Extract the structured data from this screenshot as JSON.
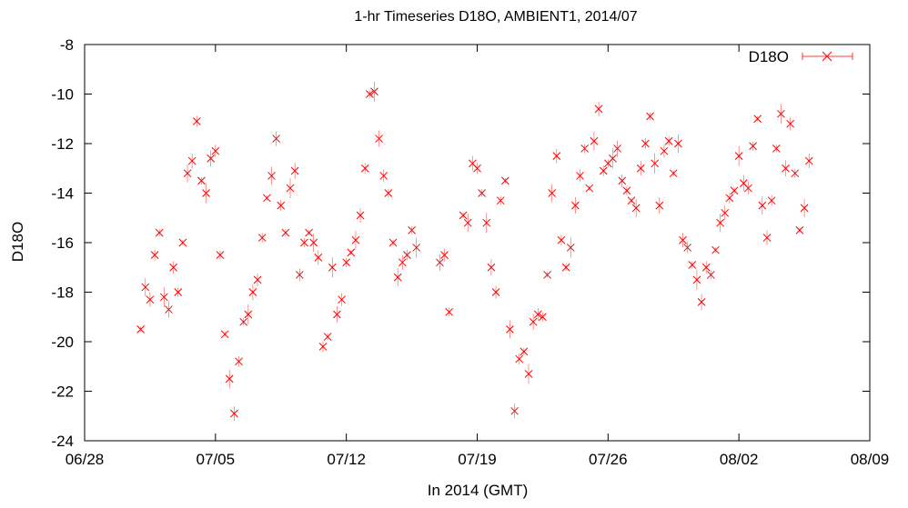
{
  "chart_data": {
    "type": "scatter",
    "title": "1-hr Timeseries D18O, AMBIENT1, 2014/07",
    "xlabel": "In 2014 (GMT)",
    "ylabel": "D18O",
    "x_range": [
      "2014-06-28",
      "2014-08-09"
    ],
    "ylim": [
      -24,
      -8
    ],
    "x_ticks": [
      "06/28",
      "07/05",
      "07/12",
      "07/19",
      "07/26",
      "08/02",
      "08/09"
    ],
    "y_ticks": [
      -8,
      -10,
      -12,
      -14,
      -16,
      -18,
      -20,
      -22,
      -24
    ],
    "grid": false,
    "legend_position": "top-right",
    "marker": "x",
    "error_bars": true,
    "color": "#ff0000",
    "series": [
      {
        "name": "D18O",
        "points": [
          [
            "2014-07-01 00:00",
            -19.5
          ],
          [
            "2014-07-01 06:00",
            -17.8
          ],
          [
            "2014-07-01 12:00",
            -18.3
          ],
          [
            "2014-07-01 18:00",
            -16.5
          ],
          [
            "2014-07-02 00:00",
            -15.6
          ],
          [
            "2014-07-02 06:00",
            -18.2
          ],
          [
            "2014-07-02 12:00",
            -18.7
          ],
          [
            "2014-07-02 18:00",
            -17.0
          ],
          [
            "2014-07-03 00:00",
            -18.0
          ],
          [
            "2014-07-03 06:00",
            -16.0
          ],
          [
            "2014-07-03 12:00",
            -13.2
          ],
          [
            "2014-07-03 18:00",
            -12.7
          ],
          [
            "2014-07-04 00:00",
            -11.1
          ],
          [
            "2014-07-04 06:00",
            -13.5
          ],
          [
            "2014-07-04 12:00",
            -14.0
          ],
          [
            "2014-07-04 18:00",
            -12.6
          ],
          [
            "2014-07-05 00:00",
            -12.3
          ],
          [
            "2014-07-05 06:00",
            -16.5
          ],
          [
            "2014-07-05 12:00",
            -19.7
          ],
          [
            "2014-07-05 18:00",
            -21.5
          ],
          [
            "2014-07-06 00:00",
            -22.9
          ],
          [
            "2014-07-06 06:00",
            -20.8
          ],
          [
            "2014-07-06 12:00",
            -19.2
          ],
          [
            "2014-07-06 18:00",
            -18.9
          ],
          [
            "2014-07-07 00:00",
            -18.0
          ],
          [
            "2014-07-07 06:00",
            -17.5
          ],
          [
            "2014-07-07 12:00",
            -15.8
          ],
          [
            "2014-07-07 18:00",
            -14.2
          ],
          [
            "2014-07-08 00:00",
            -13.3
          ],
          [
            "2014-07-08 06:00",
            -11.8
          ],
          [
            "2014-07-08 12:00",
            -14.5
          ],
          [
            "2014-07-08 18:00",
            -15.6
          ],
          [
            "2014-07-09 00:00",
            -13.8
          ],
          [
            "2014-07-09 06:00",
            -13.1
          ],
          [
            "2014-07-09 12:00",
            -17.3
          ],
          [
            "2014-07-09 18:00",
            -16.0
          ],
          [
            "2014-07-10 00:00",
            -15.6
          ],
          [
            "2014-07-10 06:00",
            -16.0
          ],
          [
            "2014-07-10 12:00",
            -16.6
          ],
          [
            "2014-07-10 18:00",
            -20.2
          ],
          [
            "2014-07-11 00:00",
            -19.8
          ],
          [
            "2014-07-11 06:00",
            -17.0
          ],
          [
            "2014-07-11 12:00",
            -18.9
          ],
          [
            "2014-07-11 18:00",
            -18.3
          ],
          [
            "2014-07-12 00:00",
            -16.8
          ],
          [
            "2014-07-12 06:00",
            -16.4
          ],
          [
            "2014-07-12 12:00",
            -15.9
          ],
          [
            "2014-07-12 18:00",
            -14.9
          ],
          [
            "2014-07-13 00:00",
            -13.0
          ],
          [
            "2014-07-13 06:00",
            -10.0
          ],
          [
            "2014-07-13 12:00",
            -9.9
          ],
          [
            "2014-07-13 18:00",
            -11.8
          ],
          [
            "2014-07-14 00:00",
            -13.3
          ],
          [
            "2014-07-14 06:00",
            -14.0
          ],
          [
            "2014-07-14 12:00",
            -16.0
          ],
          [
            "2014-07-14 18:00",
            -17.4
          ],
          [
            "2014-07-15 00:00",
            -16.8
          ],
          [
            "2014-07-15 06:00",
            -16.5
          ],
          [
            "2014-07-15 12:00",
            -15.5
          ],
          [
            "2014-07-15 18:00",
            -16.2
          ],
          [
            "2014-07-17 00:00",
            -16.8
          ],
          [
            "2014-07-17 06:00",
            -16.5
          ],
          [
            "2014-07-17 12:00",
            -18.8
          ],
          [
            "2014-07-18 06:00",
            -14.9
          ],
          [
            "2014-07-18 12:00",
            -15.2
          ],
          [
            "2014-07-18 18:00",
            -12.8
          ],
          [
            "2014-07-19 00:00",
            -13.0
          ],
          [
            "2014-07-19 06:00",
            -14.0
          ],
          [
            "2014-07-19 12:00",
            -15.2
          ],
          [
            "2014-07-19 18:00",
            -17.0
          ],
          [
            "2014-07-20 00:00",
            -18.0
          ],
          [
            "2014-07-20 06:00",
            -14.3
          ],
          [
            "2014-07-20 12:00",
            -13.5
          ],
          [
            "2014-07-20 18:00",
            -19.5
          ],
          [
            "2014-07-21 00:00",
            -22.8
          ],
          [
            "2014-07-21 06:00",
            -20.7
          ],
          [
            "2014-07-21 12:00",
            -20.4
          ],
          [
            "2014-07-21 18:00",
            -21.3
          ],
          [
            "2014-07-22 00:00",
            -19.2
          ],
          [
            "2014-07-22 06:00",
            -18.9
          ],
          [
            "2014-07-22 12:00",
            -19.0
          ],
          [
            "2014-07-22 18:00",
            -17.3
          ],
          [
            "2014-07-23 00:00",
            -14.0
          ],
          [
            "2014-07-23 06:00",
            -12.5
          ],
          [
            "2014-07-23 12:00",
            -15.9
          ],
          [
            "2014-07-23 18:00",
            -17.0
          ],
          [
            "2014-07-24 00:00",
            -16.2
          ],
          [
            "2014-07-24 06:00",
            -14.5
          ],
          [
            "2014-07-24 12:00",
            -13.3
          ],
          [
            "2014-07-24 18:00",
            -12.2
          ],
          [
            "2014-07-25 00:00",
            -13.8
          ],
          [
            "2014-07-25 06:00",
            -11.9
          ],
          [
            "2014-07-25 12:00",
            -10.6
          ],
          [
            "2014-07-25 18:00",
            -13.1
          ],
          [
            "2014-07-26 00:00",
            -12.8
          ],
          [
            "2014-07-26 06:00",
            -12.6
          ],
          [
            "2014-07-26 12:00",
            -12.2
          ],
          [
            "2014-07-26 18:00",
            -13.5
          ],
          [
            "2014-07-27 00:00",
            -13.9
          ],
          [
            "2014-07-27 06:00",
            -14.3
          ],
          [
            "2014-07-27 12:00",
            -14.6
          ],
          [
            "2014-07-27 18:00",
            -13.0
          ],
          [
            "2014-07-28 00:00",
            -12.0
          ],
          [
            "2014-07-28 06:00",
            -10.9
          ],
          [
            "2014-07-28 12:00",
            -12.8
          ],
          [
            "2014-07-28 18:00",
            -14.5
          ],
          [
            "2014-07-29 00:00",
            -12.3
          ],
          [
            "2014-07-29 06:00",
            -11.9
          ],
          [
            "2014-07-29 12:00",
            -13.2
          ],
          [
            "2014-07-29 18:00",
            -12.0
          ],
          [
            "2014-07-30 00:00",
            -15.9
          ],
          [
            "2014-07-30 06:00",
            -16.2
          ],
          [
            "2014-07-30 12:00",
            -16.9
          ],
          [
            "2014-07-30 18:00",
            -17.5
          ],
          [
            "2014-07-31 00:00",
            -18.4
          ],
          [
            "2014-07-31 06:00",
            -17.0
          ],
          [
            "2014-07-31 12:00",
            -17.3
          ],
          [
            "2014-07-31 18:00",
            -16.3
          ],
          [
            "2014-08-01 00:00",
            -15.2
          ],
          [
            "2014-08-01 06:00",
            -14.8
          ],
          [
            "2014-08-01 12:00",
            -14.2
          ],
          [
            "2014-08-01 18:00",
            -13.9
          ],
          [
            "2014-08-02 00:00",
            -12.5
          ],
          [
            "2014-08-02 06:00",
            -13.6
          ],
          [
            "2014-08-02 12:00",
            -13.8
          ],
          [
            "2014-08-02 18:00",
            -12.1
          ],
          [
            "2014-08-03 00:00",
            -11.0
          ],
          [
            "2014-08-03 06:00",
            -14.5
          ],
          [
            "2014-08-03 12:00",
            -15.8
          ],
          [
            "2014-08-03 18:00",
            -14.3
          ],
          [
            "2014-08-04 00:00",
            -12.2
          ],
          [
            "2014-08-04 06:00",
            -10.8
          ],
          [
            "2014-08-04 12:00",
            -13.0
          ],
          [
            "2014-08-04 18:00",
            -11.2
          ],
          [
            "2014-08-05 00:00",
            -13.2
          ],
          [
            "2014-08-05 06:00",
            -15.5
          ],
          [
            "2014-08-05 12:00",
            -14.6
          ],
          [
            "2014-08-05 18:00",
            -12.7
          ]
        ]
      }
    ]
  }
}
